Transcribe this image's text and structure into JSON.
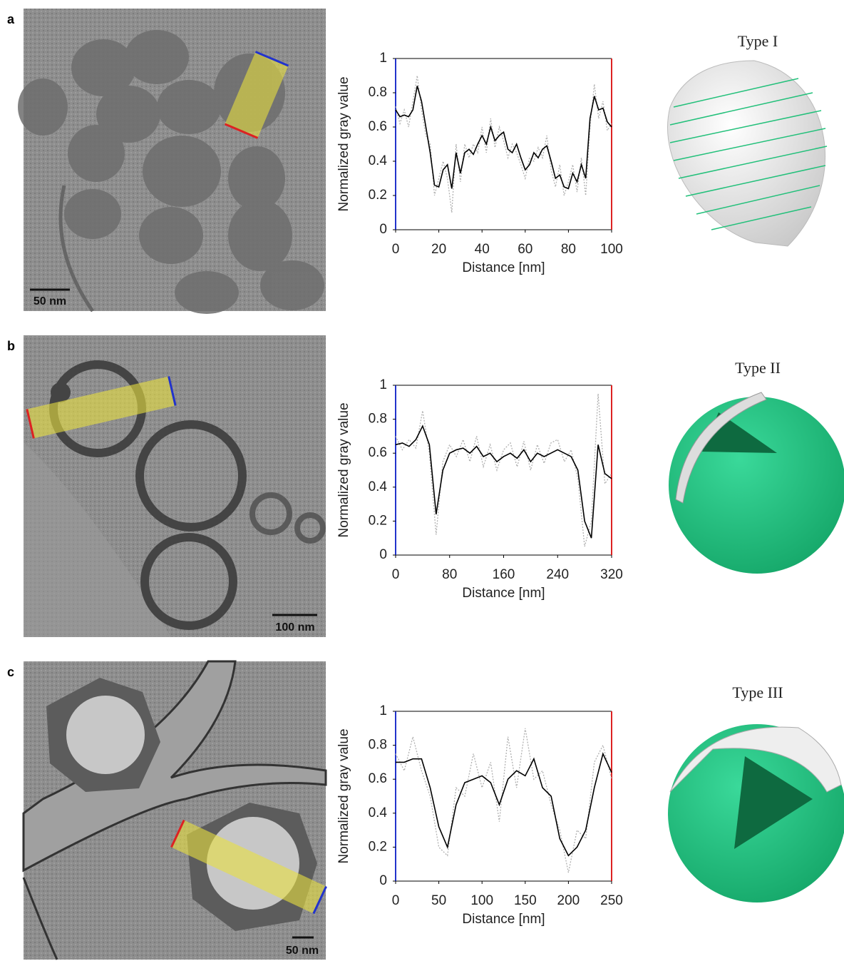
{
  "panels": [
    {
      "label": "a",
      "scale_bar": "50 nm",
      "model_title": "Type I"
    },
    {
      "label": "b",
      "scale_bar": "100 nm",
      "model_title": "Type II"
    },
    {
      "label": "c",
      "scale_bar": "50 nm",
      "model_title": "Type III"
    }
  ],
  "chart_data": [
    {
      "type": "line",
      "x_label": "Distance [nm]",
      "y_label": "Normalized gray value",
      "x": [
        0,
        2,
        4,
        6,
        8,
        10,
        12,
        14,
        16,
        18,
        20,
        22,
        24,
        26,
        28,
        30,
        32,
        34,
        36,
        38,
        40,
        42,
        44,
        46,
        48,
        50,
        52,
        54,
        56,
        58,
        60,
        62,
        64,
        66,
        68,
        70,
        72,
        74,
        76,
        78,
        80,
        82,
        84,
        86,
        88,
        90,
        92,
        94,
        96,
        98,
        100
      ],
      "series": [
        {
          "color": "#b0b0b0",
          "style": "dotted",
          "values": [
            0.72,
            0.62,
            0.7,
            0.6,
            0.75,
            0.9,
            0.7,
            0.55,
            0.5,
            0.2,
            0.3,
            0.4,
            0.3,
            0.1,
            0.5,
            0.28,
            0.5,
            0.42,
            0.5,
            0.45,
            0.6,
            0.45,
            0.65,
            0.48,
            0.6,
            0.52,
            0.42,
            0.5,
            0.45,
            0.38,
            0.3,
            0.42,
            0.4,
            0.48,
            0.42,
            0.55,
            0.35,
            0.25,
            0.38,
            0.2,
            0.28,
            0.38,
            0.22,
            0.42,
            0.2,
            0.6,
            0.85,
            0.65,
            0.75,
            0.58,
            0.62
          ]
        },
        {
          "color": "#000000",
          "style": "solid",
          "values": [
            0.7,
            0.66,
            0.67,
            0.66,
            0.7,
            0.84,
            0.75,
            0.6,
            0.45,
            0.26,
            0.25,
            0.35,
            0.38,
            0.24,
            0.45,
            0.33,
            0.45,
            0.47,
            0.44,
            0.5,
            0.55,
            0.5,
            0.6,
            0.52,
            0.55,
            0.57,
            0.47,
            0.45,
            0.5,
            0.42,
            0.35,
            0.38,
            0.45,
            0.42,
            0.47,
            0.49,
            0.4,
            0.3,
            0.32,
            0.25,
            0.24,
            0.33,
            0.28,
            0.38,
            0.3,
            0.65,
            0.78,
            0.7,
            0.71,
            0.63,
            0.6
          ]
        }
      ],
      "xlim": [
        0,
        100
      ],
      "xticks": [
        0,
        20,
        40,
        60,
        80,
        100
      ],
      "ylim": [
        0,
        1
      ],
      "yticks": [
        0,
        0.2,
        0.4,
        0.6,
        0.8,
        1
      ]
    },
    {
      "type": "line",
      "x_label": "Distance [nm]",
      "y_label": "Normalized gray value",
      "x": [
        0,
        10,
        20,
        30,
        40,
        50,
        60,
        70,
        80,
        90,
        100,
        110,
        120,
        130,
        140,
        150,
        160,
        170,
        180,
        190,
        200,
        210,
        220,
        230,
        240,
        250,
        260,
        270,
        280,
        290,
        300,
        310,
        320
      ],
      "series": [
        {
          "color": "#b0b0b0",
          "style": "dotted",
          "values": [
            0.7,
            0.62,
            0.68,
            0.63,
            0.85,
            0.6,
            0.12,
            0.55,
            0.65,
            0.58,
            0.68,
            0.55,
            0.7,
            0.52,
            0.65,
            0.5,
            0.62,
            0.66,
            0.52,
            0.67,
            0.5,
            0.65,
            0.54,
            0.66,
            0.68,
            0.55,
            0.62,
            0.45,
            0.05,
            0.2,
            0.95,
            0.42,
            0.48
          ]
        },
        {
          "color": "#000000",
          "style": "solid",
          "values": [
            0.65,
            0.66,
            0.64,
            0.68,
            0.76,
            0.65,
            0.24,
            0.5,
            0.6,
            0.62,
            0.63,
            0.6,
            0.64,
            0.58,
            0.6,
            0.55,
            0.58,
            0.6,
            0.57,
            0.62,
            0.55,
            0.6,
            0.58,
            0.6,
            0.62,
            0.6,
            0.58,
            0.5,
            0.2,
            0.1,
            0.65,
            0.48,
            0.45
          ]
        }
      ],
      "xlim": [
        0,
        320
      ],
      "xticks": [
        0,
        80,
        160,
        240,
        320
      ],
      "ylim": [
        0,
        1
      ],
      "yticks": [
        0,
        0.2,
        0.4,
        0.6,
        0.8,
        1
      ]
    },
    {
      "type": "line",
      "x_label": "Distance [nm]",
      "y_label": "Normalized gray value",
      "x": [
        0,
        10,
        20,
        30,
        40,
        50,
        60,
        70,
        80,
        90,
        100,
        110,
        120,
        130,
        140,
        150,
        160,
        170,
        180,
        190,
        200,
        210,
        220,
        230,
        240,
        250
      ],
      "series": [
        {
          "color": "#b0b0b0",
          "style": "dotted",
          "values": [
            0.75,
            0.65,
            0.85,
            0.65,
            0.5,
            0.2,
            0.15,
            0.55,
            0.5,
            0.75,
            0.55,
            0.7,
            0.35,
            0.85,
            0.55,
            0.9,
            0.6,
            0.65,
            0.45,
            0.3,
            0.05,
            0.3,
            0.25,
            0.7,
            0.8,
            0.6
          ]
        },
        {
          "color": "#000000",
          "style": "solid",
          "values": [
            0.7,
            0.7,
            0.72,
            0.72,
            0.55,
            0.32,
            0.2,
            0.45,
            0.58,
            0.6,
            0.62,
            0.58,
            0.45,
            0.6,
            0.65,
            0.62,
            0.72,
            0.55,
            0.5,
            0.25,
            0.15,
            0.2,
            0.3,
            0.55,
            0.75,
            0.64
          ]
        }
      ],
      "xlim": [
        0,
        250
      ],
      "xticks": [
        0,
        50,
        100,
        150,
        200,
        250
      ],
      "ylim": [
        0,
        1
      ],
      "yticks": [
        0,
        0.2,
        0.4,
        0.6,
        0.8,
        1
      ]
    }
  ]
}
